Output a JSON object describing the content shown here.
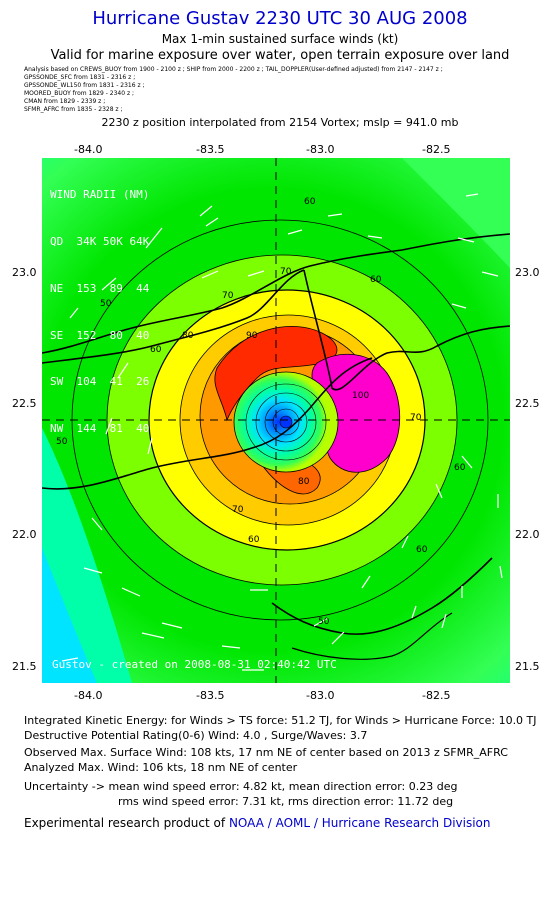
{
  "header": {
    "title": "Hurricane Gustav 2230 UTC 30 AUG 2008",
    "subtitle1": "Max 1-min sustained surface winds (kt)",
    "subtitle2": "Valid for marine exposure over water, open terrain exposure over land",
    "analysis_lines": [
      "Analysis based on CREWS_BUOY from 1900 - 2100 z ; SHIP from 2000 - 2200 z ; TAIL_DOPPLER(User-defined adjusted) from 2147 - 2147 z ;",
      "GPSSONDE_SFC from 1831 - 2316 z ;",
      "GPSSONDE_WL150 from 1831 - 2316 z ;",
      "MOORED_BUOY from 1829 - 2340 z ;",
      "CMAN from 1829 - 2339 z ;",
      "SFMR_AFRC from 1835 - 2328 z ;"
    ],
    "position_note": "2230 z position interpolated from 2154 Vortex; mslp = 941.0 mb"
  },
  "axes": {
    "lon_labels": [
      "-84.0",
      "-83.5",
      "-83.0",
      "-82.5"
    ],
    "lat_labels": [
      "23.0",
      "22.5",
      "22.0",
      "21.5"
    ]
  },
  "map": {
    "wind_radii": {
      "title": "WIND RADII (NM)",
      "header": [
        "QD",
        "34K",
        "50K",
        "64K"
      ],
      "rows": [
        [
          "NE",
          "153",
          "89",
          "44"
        ],
        [
          "SE",
          "152",
          "80",
          "40"
        ],
        [
          "SW",
          "104",
          "41",
          "26"
        ],
        [
          "NW",
          "144",
          "81",
          "40"
        ]
      ]
    },
    "contour_labels": [
      "60",
      "50",
      "60",
      "70",
      "80",
      "90",
      "70",
      "100",
      "70",
      "60",
      "80",
      "70",
      "60",
      "50",
      "50",
      "60",
      "60"
    ],
    "credit": "Gustov - created on 2008-08-31 02:40:42 UTC",
    "colors": {
      "cyan": "#00e4ff",
      "aqua_green": "#00ffa8",
      "light_green": "#33ff55",
      "green": "#00e600",
      "yellow_green": "#b7ff00",
      "yellow": "#ffff00",
      "orange": "#ff9900",
      "dark_orange": "#ff6600",
      "red": "#ff2a00",
      "magenta": "#ff00cc"
    }
  },
  "stats": {
    "ike_label": "Integrated Kinetic Energy:",
    "ike_ts": "for Winds > TS force: 51.2 TJ,",
    "ike_hurr": "for Winds > Hurricane Force: 10.0 TJ",
    "dpr_line": "Destructive Potential Rating(0-6)   Wind: 4.0 , Surge/Waves: 3.7",
    "observed": "Observed Max. Surface Wind: 108 kts, 17 nm NE of center based on 2013 z SFMR_AFRC",
    "analyzed": "Analyzed Max. Wind: 106 kts, 18 nm NE of center",
    "uncertainty_label": "Uncertainty ->",
    "mean_speed": "mean wind speed error: 4.82 kt,",
    "mean_dir": "mean direction error: 0.23 deg",
    "rms_speed": "rms wind speed error: 7.31 kt,",
    "rms_dir": "rms direction error: 11.72 deg"
  },
  "footer": {
    "prefix": "Experimental research product of",
    "org": "NOAA / AOML / Hurricane Research Division"
  }
}
